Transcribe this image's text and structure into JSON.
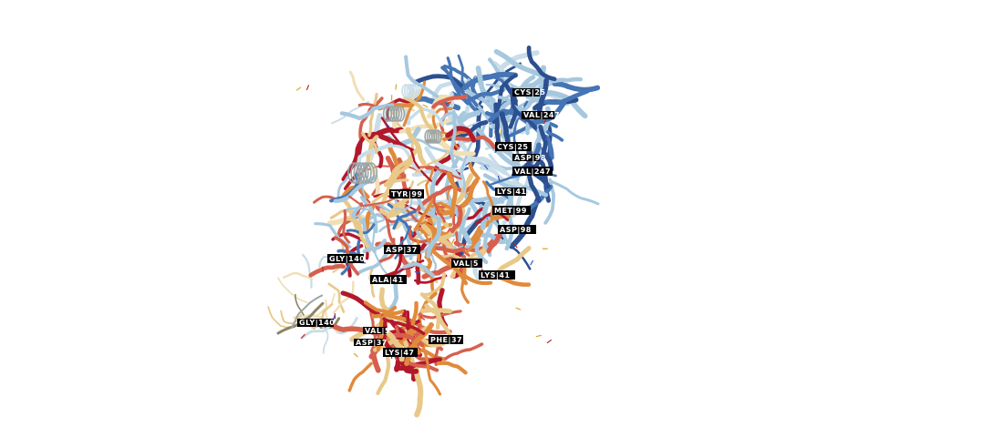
{
  "viewer": {
    "colors": {
      "background": "#ffffff",
      "dark_red": "#b2182b",
      "red": "#d6604d",
      "orange": "#e08a3c",
      "tan": "#e8c98a",
      "light_tan": "#f1dfb5",
      "light_blue": "#a6c8df",
      "pale_blue": "#c9dde9",
      "blue": "#4575b4",
      "dark_blue": "#2c4f8f",
      "grey": "#9aa6a8",
      "olive": "#8c8463"
    },
    "residue_labels": [
      "CYS|25",
      "VAL|247",
      "CYS|25",
      "ASP|98",
      "VAL|247",
      "LYS|41",
      "MET|99",
      "ASP|98",
      "TYR|99",
      "ASP|37",
      "GLY|140",
      "ALA|41",
      "VAL|5",
      "LYS|41",
      "GLY|140",
      "PHE|37",
      "LYS|47",
      "ASP|37",
      "VAL|5"
    ]
  }
}
